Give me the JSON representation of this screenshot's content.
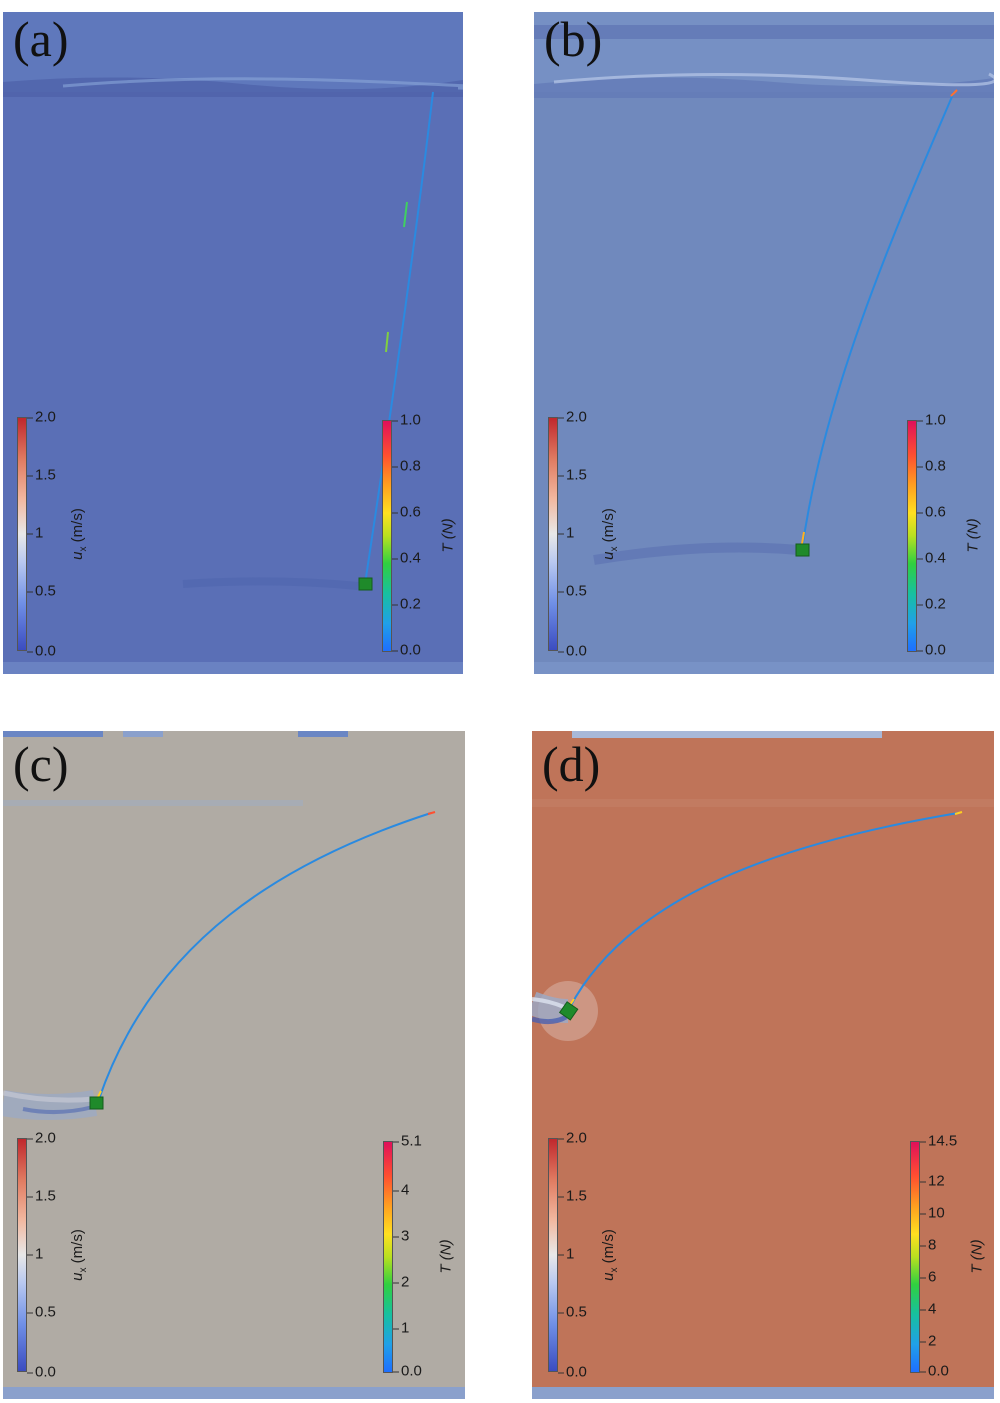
{
  "panels": [
    {
      "label": "(a)",
      "background": "#5a6fb6",
      "ux_colorbar": {
        "title": "u",
        "sub": "x",
        "unit": "(m/s)",
        "ticks": [
          "2.0",
          "1.5",
          "1",
          "0.5",
          "0.0"
        ]
      },
      "t_colorbar": {
        "title": "T (N)",
        "ticks": [
          "1.0",
          "0.8",
          "0.6",
          "0.4",
          "0.2",
          "0.0"
        ]
      }
    },
    {
      "label": "(b)",
      "background": "#7089bd",
      "ux_colorbar": {
        "title": "u",
        "sub": "x",
        "unit": "(m/s)",
        "ticks": [
          "2.0",
          "1.5",
          "1",
          "0.5",
          "0.0"
        ]
      },
      "t_colorbar": {
        "title": "T (N)",
        "ticks": [
          "1.0",
          "0.8",
          "0.6",
          "0.4",
          "0.2",
          "0.0"
        ]
      }
    },
    {
      "label": "(c)",
      "background": "#b0aba4",
      "ux_colorbar": {
        "title": "u",
        "sub": "x",
        "unit": "(m/s)",
        "ticks": [
          "2.0",
          "1.5",
          "1",
          "0.5",
          "0.0"
        ]
      },
      "t_colorbar": {
        "title": "T (N)",
        "ticks": [
          "5.1",
          "4",
          "3",
          "2",
          "1",
          "0.0"
        ]
      }
    },
    {
      "label": "(d)",
      "background": "#bf7459",
      "ux_colorbar": {
        "title": "u",
        "sub": "x",
        "unit": "(m/s)",
        "ticks": [
          "2.0",
          "1.5",
          "1",
          "0.5",
          "0.0"
        ]
      },
      "t_colorbar": {
        "title": "T (N)",
        "ticks": [
          "14.5",
          "12",
          "10",
          "8",
          "6",
          "4",
          "2",
          "0.0"
        ]
      }
    }
  ]
}
